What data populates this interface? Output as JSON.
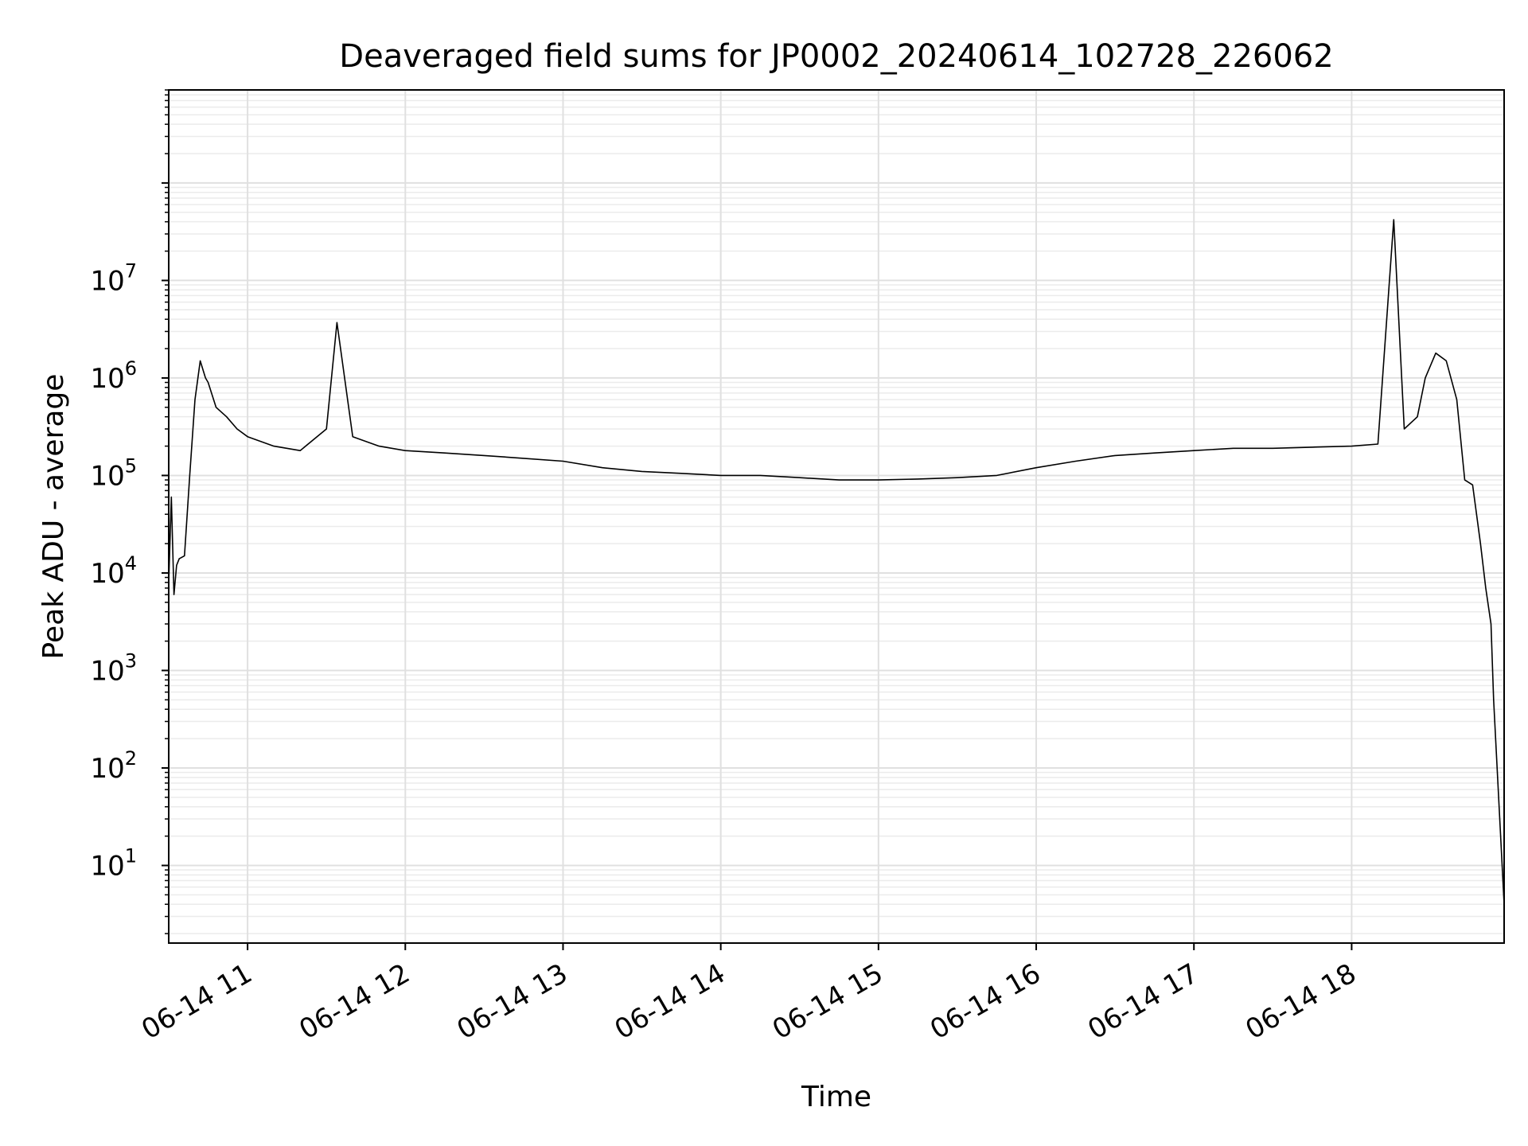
{
  "chart_data": {
    "type": "line",
    "title": "Deaveraged field sums for JP0002_20240614_102728_226062",
    "xlabel": "Time",
    "ylabel": "Peak ADU - average",
    "xscale": "time",
    "yscale": "log",
    "xlim": [
      "2024-06-14T10:30",
      "2024-06-14T18:58"
    ],
    "ylim": [
      1.6,
      900000000
    ],
    "grid": true,
    "x_ticks": [
      {
        "value": "2024-06-14T11:00",
        "label": "06-14 11"
      },
      {
        "value": "2024-06-14T12:00",
        "label": "06-14 12"
      },
      {
        "value": "2024-06-14T13:00",
        "label": "06-14 13"
      },
      {
        "value": "2024-06-14T14:00",
        "label": "06-14 14"
      },
      {
        "value": "2024-06-14T15:00",
        "label": "06-14 15"
      },
      {
        "value": "2024-06-14T16:00",
        "label": "06-14 16"
      },
      {
        "value": "2024-06-14T17:00",
        "label": "06-14 17"
      },
      {
        "value": "2024-06-14T18:00",
        "label": "06-14 18"
      }
    ],
    "y_ticks": [
      {
        "value": 10,
        "base": "10",
        "exp": "1"
      },
      {
        "value": 100,
        "base": "10",
        "exp": "2"
      },
      {
        "value": 1000,
        "base": "10",
        "exp": "3"
      },
      {
        "value": 10000,
        "base": "10",
        "exp": "4"
      },
      {
        "value": 100000,
        "base": "10",
        "exp": "5"
      },
      {
        "value": 1000000,
        "base": "10",
        "exp": "6"
      },
      {
        "value": 10000000,
        "base": "10",
        "exp": "7"
      }
    ],
    "series": [
      {
        "color": "#000000",
        "x": [
          "2024-06-14T10:30",
          "2024-06-14T10:31",
          "2024-06-14T10:32",
          "2024-06-14T10:33",
          "2024-06-14T10:34",
          "2024-06-14T10:36",
          "2024-06-14T10:38",
          "2024-06-14T10:40",
          "2024-06-14T10:42",
          "2024-06-14T10:44",
          "2024-06-14T10:45",
          "2024-06-14T10:48",
          "2024-06-14T10:52",
          "2024-06-14T10:56",
          "2024-06-14T11:00",
          "2024-06-14T11:10",
          "2024-06-14T11:20",
          "2024-06-14T11:30",
          "2024-06-14T11:34",
          "2024-06-14T11:40",
          "2024-06-14T11:50",
          "2024-06-14T12:00",
          "2024-06-14T12:15",
          "2024-06-14T12:30",
          "2024-06-14T12:45",
          "2024-06-14T13:00",
          "2024-06-14T13:15",
          "2024-06-14T13:30",
          "2024-06-14T13:45",
          "2024-06-14T14:00",
          "2024-06-14T14:15",
          "2024-06-14T14:30",
          "2024-06-14T14:45",
          "2024-06-14T15:00",
          "2024-06-14T15:15",
          "2024-06-14T15:30",
          "2024-06-14T15:45",
          "2024-06-14T16:00",
          "2024-06-14T16:15",
          "2024-06-14T16:30",
          "2024-06-14T16:45",
          "2024-06-14T17:00",
          "2024-06-14T17:15",
          "2024-06-14T17:30",
          "2024-06-14T17:45",
          "2024-06-14T18:00",
          "2024-06-14T18:10",
          "2024-06-14T18:16",
          "2024-06-14T18:20",
          "2024-06-14T18:25",
          "2024-06-14T18:28",
          "2024-06-14T18:32",
          "2024-06-14T18:36",
          "2024-06-14T18:40",
          "2024-06-14T18:43",
          "2024-06-14T18:46",
          "2024-06-14T18:49",
          "2024-06-14T18:51",
          "2024-06-14T18:53",
          "2024-06-14T18:54",
          "2024-06-14T18:58"
        ],
        "y": [
          8000,
          60000,
          6000,
          12000,
          14000,
          15000,
          100000,
          600000,
          1500000,
          1000000,
          900000,
          500000,
          400000,
          300000,
          250000,
          200000,
          180000,
          300000,
          3700000,
          250000,
          200000,
          180000,
          170000,
          160000,
          150000,
          140000,
          120000,
          110000,
          105000,
          100000,
          100000,
          95000,
          90000,
          90000,
          92000,
          95000,
          100000,
          120000,
          140000,
          160000,
          170000,
          180000,
          190000,
          190000,
          195000,
          200000,
          210000,
          42000000,
          300000,
          400000,
          1000000,
          1800000,
          1500000,
          600000,
          90000,
          80000,
          20000,
          7000,
          3000,
          500,
          4
        ]
      }
    ]
  }
}
